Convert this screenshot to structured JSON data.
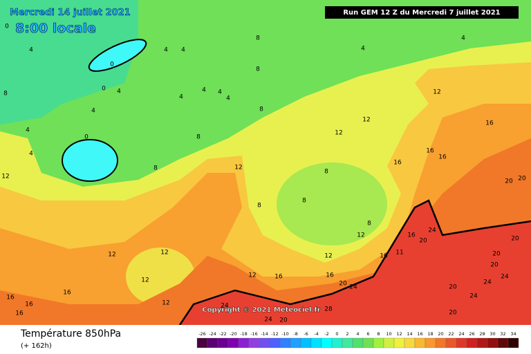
{
  "header": {
    "date": "Mercredi 14 juillet 2021",
    "time": "8:00 locale",
    "run": "Run GEM 12 Z du Mercredi 7 juillet 2021"
  },
  "map": {
    "contour_labels": [
      0,
      4,
      0,
      4,
      4,
      8,
      4,
      4,
      8,
      0,
      4,
      4,
      0,
      4,
      4,
      4,
      4,
      4,
      4,
      8,
      8,
      8,
      8,
      12,
      8,
      12,
      12,
      12,
      16,
      16,
      16,
      16,
      20,
      20,
      12,
      12,
      12,
      12,
      12,
      8,
      8,
      8,
      12,
      16,
      24,
      20,
      16,
      11,
      12,
      16,
      12,
      16,
      20,
      24,
      20,
      24,
      24,
      24,
      20,
      20,
      20,
      20,
      24,
      28,
      24,
      20,
      16,
      16,
      16,
      16
    ],
    "copyright": "Copyright © 2021 Meteociel.fr"
  },
  "footer": {
    "title": "Température 850hPa",
    "subtitle": "(+ 162h)"
  },
  "legend": {
    "values": [
      -26,
      -24,
      -22,
      -20,
      -18,
      -16,
      -14,
      -12,
      -10,
      -8,
      -6,
      -4,
      -2,
      0,
      2,
      4,
      6,
      8,
      10,
      12,
      14,
      16,
      18,
      20,
      22,
      24,
      26,
      28,
      30,
      32,
      34
    ],
    "colors": [
      "#4b0040",
      "#5a0070",
      "#6a0090",
      "#8000b0",
      "#8a20d0",
      "#9040e0",
      "#7050f0",
      "#5060ff",
      "#3080ff",
      "#20a0ff",
      "#00c0ff",
      "#00e0ff",
      "#00ffff",
      "#20f0d0",
      "#40e8a0",
      "#50e070",
      "#70e050",
      "#a0f040",
      "#d0f040",
      "#f0f040",
      "#f8d840",
      "#f8b830",
      "#f89830",
      "#f07828",
      "#e85828",
      "#e03828",
      "#d02020",
      "#b01818",
      "#901010",
      "#600808",
      "#300000"
    ]
  }
}
